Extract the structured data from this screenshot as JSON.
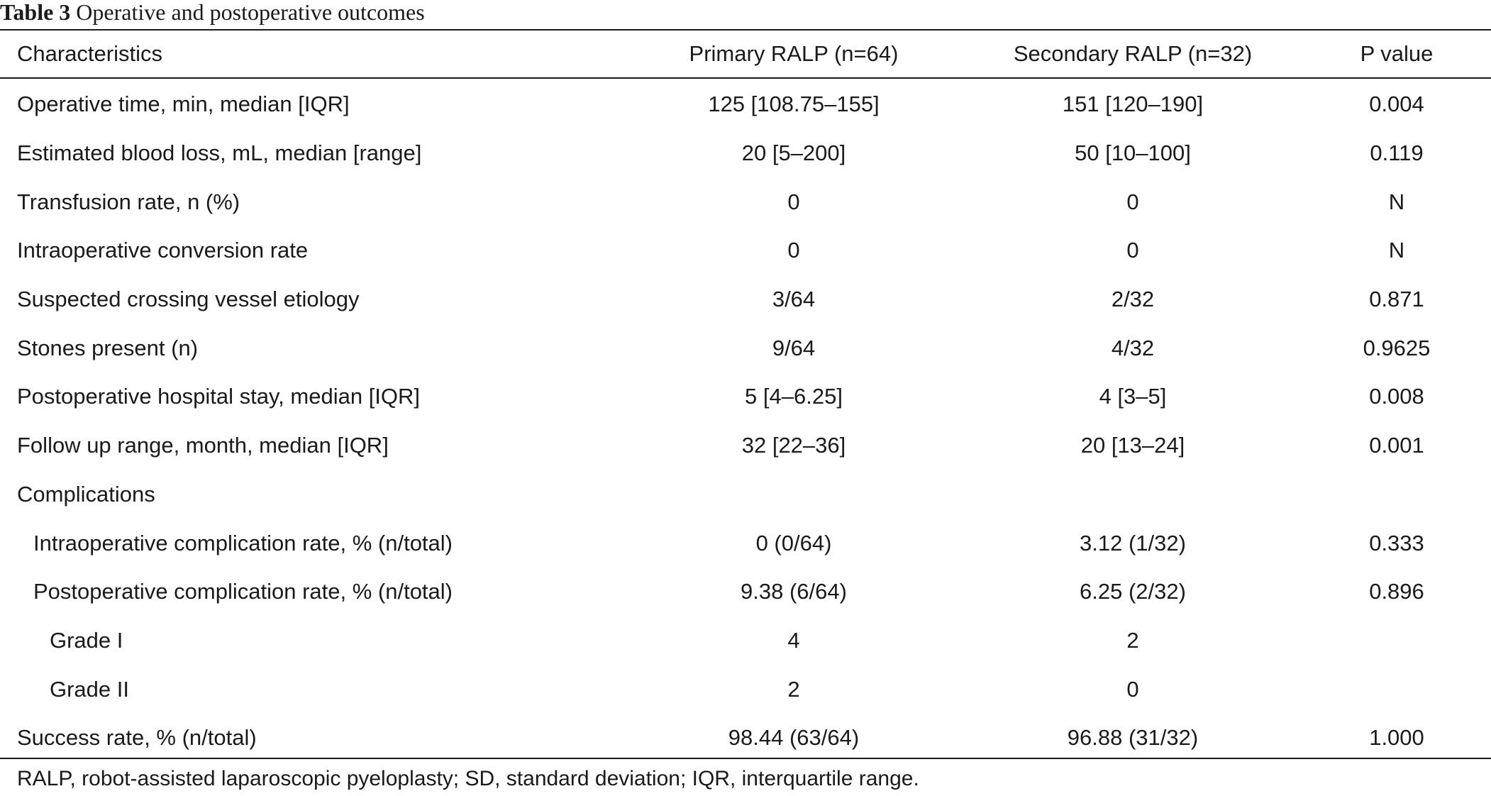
{
  "caption": {
    "label": "Table 3",
    "title": "Operative and postoperative outcomes"
  },
  "headers": {
    "characteristics": "Characteristics",
    "primary": "Primary RALP (n=64)",
    "secondary": "Secondary RALP (n=32)",
    "p_value": "P value"
  },
  "rows": [
    {
      "label": "Operative time, min, median [IQR]",
      "level": 0,
      "primary": "125 [108.75–155]",
      "secondary": "151 [120–190]",
      "p": "0.004"
    },
    {
      "label": "Estimated blood loss, mL, median [range]",
      "level": 0,
      "primary": "20 [5–200]",
      "secondary": "50 [10–100]",
      "p": "0.119"
    },
    {
      "label": "Transfusion rate, n (%)",
      "level": 0,
      "primary": "0",
      "secondary": "0",
      "p": "N"
    },
    {
      "label": "Intraoperative conversion rate",
      "level": 0,
      "primary": "0",
      "secondary": "0",
      "p": "N"
    },
    {
      "label": "Suspected crossing vessel etiology",
      "level": 0,
      "primary": "3/64",
      "secondary": "2/32",
      "p": "0.871"
    },
    {
      "label": "Stones present (n)",
      "level": 0,
      "primary": "9/64",
      "secondary": "4/32",
      "p": "0.9625"
    },
    {
      "label": "Postoperative hospital stay, median [IQR]",
      "level": 0,
      "primary": "5 [4–6.25]",
      "secondary": "4 [3–5]",
      "p": "0.008"
    },
    {
      "label": "Follow up range, month, median [IQR]",
      "level": 0,
      "primary": "32 [22–36]",
      "secondary": "20 [13–24]",
      "p": "0.001"
    },
    {
      "label": "Complications",
      "level": 0,
      "primary": "",
      "secondary": "",
      "p": ""
    },
    {
      "label": "Intraoperative complication rate, % (n/total)",
      "level": 1,
      "primary": "0 (0/64)",
      "secondary": "3.12 (1/32)",
      "p": "0.333"
    },
    {
      "label": "Postoperative complication rate, % (n/total)",
      "level": 1,
      "primary": "9.38 (6/64)",
      "secondary": "6.25 (2/32)",
      "p": "0.896"
    },
    {
      "label": "Grade I",
      "level": 2,
      "primary": "4",
      "secondary": "2",
      "p": ""
    },
    {
      "label": "Grade II",
      "level": 2,
      "primary": "2",
      "secondary": "0",
      "p": ""
    },
    {
      "label": "Success rate, % (n/total)",
      "level": 0,
      "primary": "98.44 (63/64)",
      "secondary": "96.88 (31/32)",
      "p": "1.000"
    }
  ],
  "footnote": "RALP, robot-assisted laparoscopic pyeloplasty; SD, standard deviation; IQR, interquartile range."
}
